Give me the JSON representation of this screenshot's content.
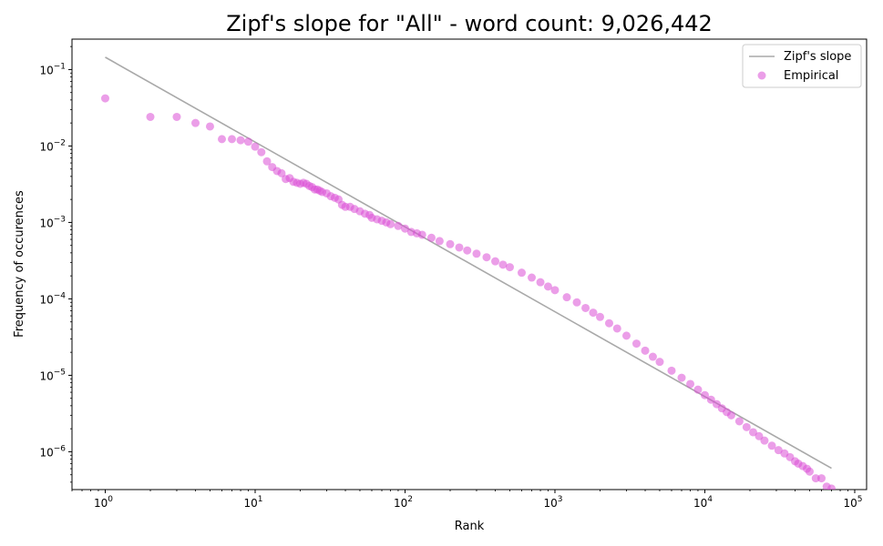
{
  "chart_data": {
    "type": "scatter",
    "title": "Zipf's slope for \"All\" - word count: 9,026,442",
    "xlabel": "Rank",
    "ylabel": "Frequency of occurences",
    "xscale": "log",
    "yscale": "log",
    "xlim": [
      0.6,
      120000
    ],
    "ylim": [
      3.2e-07,
      0.25
    ],
    "grid": false,
    "legend_placement": "top-right",
    "x_ticks": [
      {
        "value": 1,
        "base": "10",
        "exp": "0"
      },
      {
        "value": 10,
        "base": "10",
        "exp": "1"
      },
      {
        "value": 100,
        "base": "10",
        "exp": "2"
      },
      {
        "value": 1000,
        "base": "10",
        "exp": "3"
      },
      {
        "value": 10000,
        "base": "10",
        "exp": "4"
      },
      {
        "value": 100000,
        "base": "10",
        "exp": "5"
      }
    ],
    "y_ticks": [
      {
        "value": 1e-06,
        "base": "10",
        "exp": "−6"
      },
      {
        "value": 1e-05,
        "base": "10",
        "exp": "−5"
      },
      {
        "value": 0.0001,
        "base": "10",
        "exp": "−4"
      },
      {
        "value": 0.001,
        "base": "10",
        "exp": "−3"
      },
      {
        "value": 0.01,
        "base": "10",
        "exp": "−2"
      },
      {
        "value": 0.1,
        "base": "10",
        "exp": "−1"
      }
    ],
    "series": [
      {
        "name": "Zipf's slope",
        "kind": "line",
        "color": "#a9a9a9",
        "x": [
          1,
          70000
        ],
        "y": [
          0.145,
          6.08e-07
        ]
      },
      {
        "name": "Empirical",
        "kind": "scatter",
        "color": "#da4fd6",
        "x": [
          1,
          2,
          3,
          4,
          5,
          6,
          7,
          8,
          9,
          10,
          11,
          12,
          13,
          14,
          15,
          16,
          17,
          18,
          19,
          20,
          21,
          22,
          23,
          24,
          25,
          26,
          27,
          28,
          30,
          32,
          34,
          36,
          38,
          40,
          43,
          46,
          50,
          54,
          58,
          60,
          65,
          70,
          75,
          80,
          90,
          100,
          110,
          120,
          130,
          150,
          170,
          200,
          230,
          260,
          300,
          350,
          400,
          450,
          500,
          600,
          700,
          800,
          900,
          1000,
          1200,
          1400,
          1600,
          1800,
          2000,
          2300,
          2600,
          3000,
          3500,
          4000,
          4500,
          5000,
          6000,
          7000,
          8000,
          9000,
          10000,
          11000,
          12000,
          13000,
          14000,
          15000,
          17000,
          19000,
          21000,
          23000,
          25000,
          28000,
          31000,
          34000,
          37000,
          40000,
          42000,
          45000,
          48000,
          50000,
          55000,
          60000,
          65000,
          70000
        ],
        "y": [
          0.042,
          0.024,
          0.024,
          0.02,
          0.018,
          0.0123,
          0.0123,
          0.0119,
          0.0114,
          0.0098,
          0.0083,
          0.0063,
          0.0053,
          0.0047,
          0.0044,
          0.0037,
          0.0038,
          0.0034,
          0.0033,
          0.0032,
          0.0033,
          0.0032,
          0.003,
          0.0029,
          0.0027,
          0.0027,
          0.0026,
          0.0025,
          0.0024,
          0.0022,
          0.0021,
          0.002,
          0.0017,
          0.0016,
          0.0016,
          0.0015,
          0.0014,
          0.0013,
          0.00125,
          0.00115,
          0.0011,
          0.00105,
          0.001,
          0.00095,
          0.0009,
          0.00083,
          0.00075,
          0.00072,
          0.00069,
          0.00063,
          0.00057,
          0.00052,
          0.00047,
          0.00043,
          0.00039,
          0.00035,
          0.00031,
          0.00028,
          0.00026,
          0.00022,
          0.00019,
          0.000165,
          0.000145,
          0.00013,
          0.000105,
          9e-05,
          7.6e-05,
          6.6e-05,
          5.8e-05,
          4.8e-05,
          4.1e-05,
          3.3e-05,
          2.6e-05,
          2.1e-05,
          1.75e-05,
          1.5e-05,
          1.15e-05,
          9.3e-06,
          7.7e-06,
          6.5e-06,
          5.5e-06,
          4.8e-06,
          4.2e-06,
          3.7e-06,
          3.3e-06,
          3e-06,
          2.5e-06,
          2.1e-06,
          1.8e-06,
          1.6e-06,
          1.4e-06,
          1.2e-06,
          1.05e-06,
          9.5e-07,
          8.5e-07,
          7.5e-07,
          7e-07,
          6.5e-07,
          6e-07,
          5.5e-07,
          4.5e-07,
          4.5e-07,
          3.5e-07,
          3.3e-07
        ]
      }
    ]
  }
}
